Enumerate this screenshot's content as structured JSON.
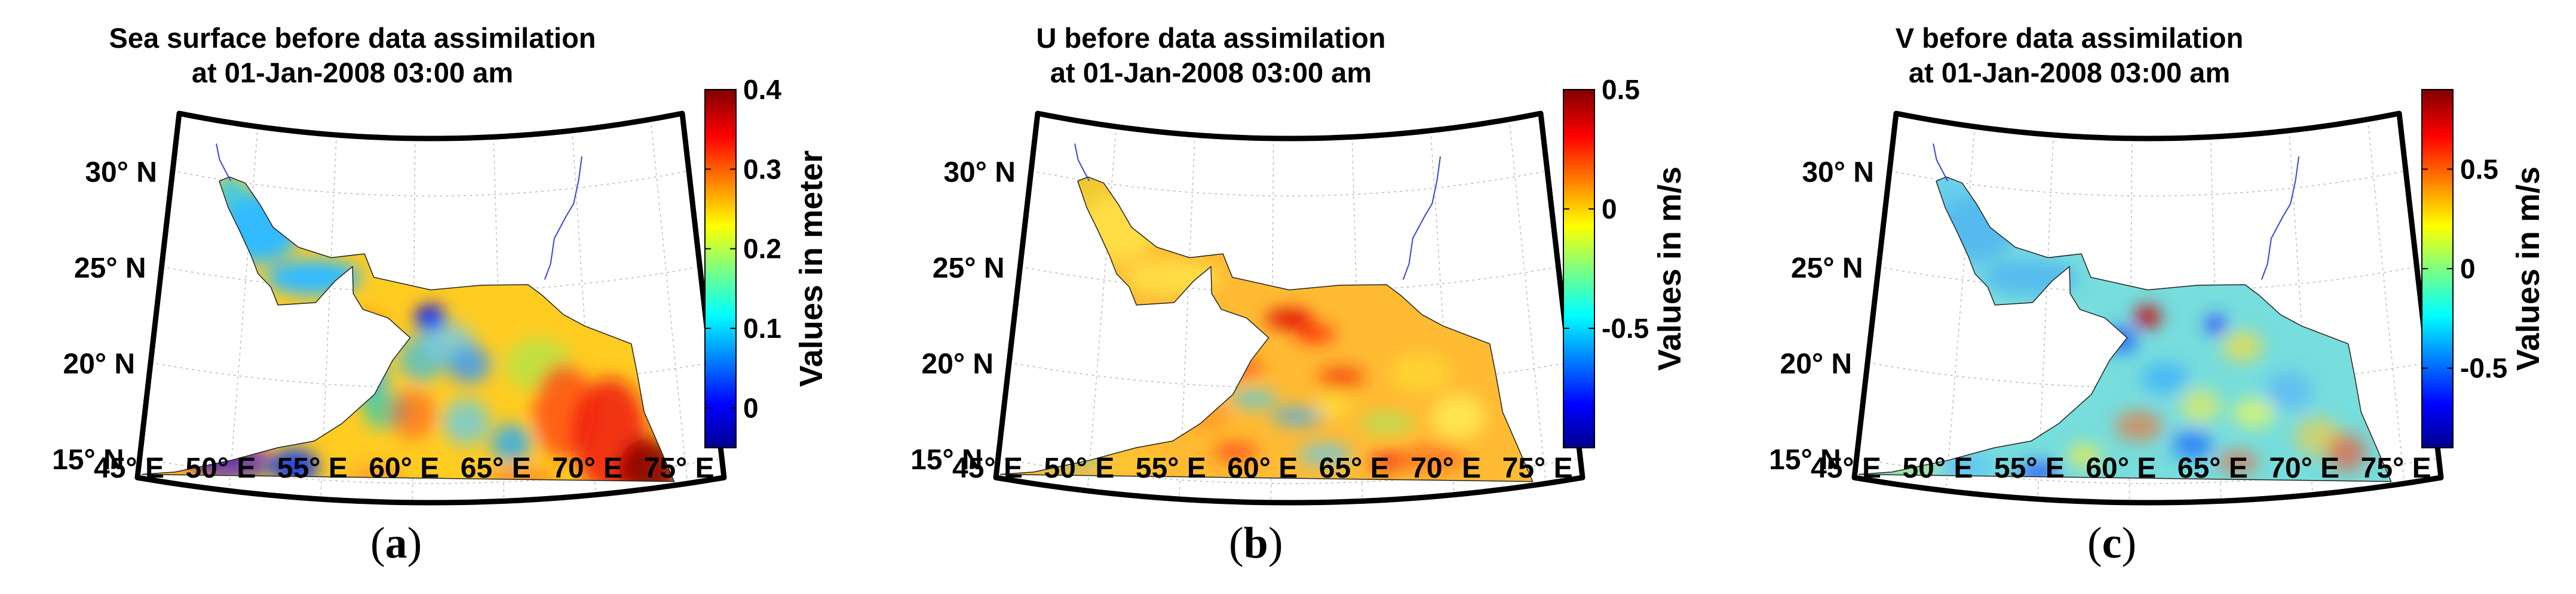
{
  "figure": {
    "captions": [
      "(a)",
      "(b)",
      "(c)"
    ]
  },
  "chart_data": [
    {
      "type": "heatmap",
      "title_line1": "Sea surface before data assimilation",
      "title_line2": "at 01-Jan-2008 03:00 am",
      "colorbar_label": "Values in meter",
      "colorbar_range": [
        -0.05,
        0.4
      ],
      "colorbar_ticks": [
        0.4,
        0.3,
        0.2,
        0.1,
        0
      ],
      "colorbar_tick_labels": [
        "0.4",
        "0.3",
        "0.2",
        "0.1",
        "0"
      ],
      "lat_labels": [
        "30° N",
        "25° N",
        "20° N",
        "15° N"
      ],
      "lon_labels": [
        "45° E",
        "50° E",
        "55° E",
        "60° E",
        "65° E",
        "70° E",
        "75° E"
      ],
      "xlim": [
        45,
        77
      ],
      "ylim": [
        14,
        33
      ],
      "caption": "(a)"
    },
    {
      "type": "heatmap",
      "title_line1": "U before data assimilation",
      "title_line2": "at 01-Jan-2008 03:00 am",
      "colorbar_label": "Values in m/s",
      "colorbar_range": [
        -1.0,
        0.5
      ],
      "colorbar_ticks": [
        0.5,
        0,
        -0.5
      ],
      "colorbar_tick_labels": [
        "0.5",
        "0",
        "-0.5"
      ],
      "lat_labels": [
        "30° N",
        "25° N",
        "20° N",
        "15° N"
      ],
      "lon_labels": [
        "45° E",
        "50° E",
        "55° E",
        "60° E",
        "65° E",
        "70° E",
        "75° E"
      ],
      "xlim": [
        45,
        77
      ],
      "ylim": [
        14,
        33
      ],
      "caption": "(b)"
    },
    {
      "type": "heatmap",
      "title_line1": "V before data assimilation",
      "title_line2": "at 01-Jan-2008 03:00 am",
      "colorbar_label": "Values in m/s",
      "colorbar_range": [
        -0.9,
        0.9
      ],
      "colorbar_ticks": [
        0.5,
        0,
        -0.5
      ],
      "colorbar_tick_labels": [
        "0.5",
        "0",
        "-0.5"
      ],
      "lat_labels": [
        "30° N",
        "25° N",
        "20° N",
        "15° N"
      ],
      "lon_labels": [
        "45° E",
        "50° E",
        "55° E",
        "60° E",
        "65° E",
        "70° E",
        "75° E"
      ],
      "xlim": [
        45,
        77
      ],
      "ylim": [
        14,
        33
      ],
      "caption": "(c)"
    }
  ]
}
